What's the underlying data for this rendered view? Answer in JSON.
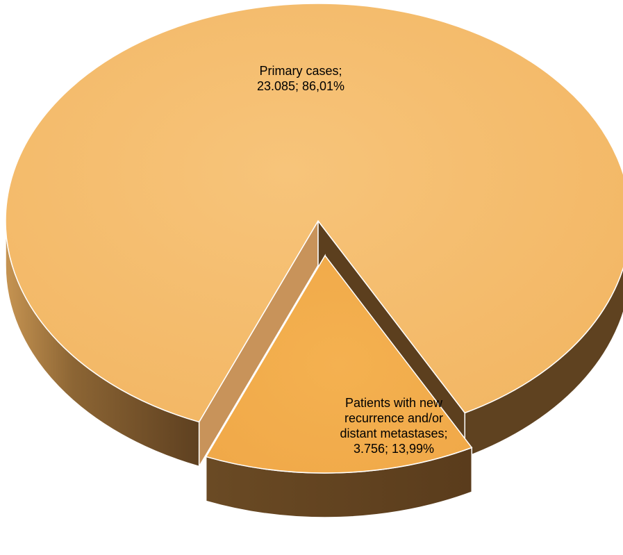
{
  "chart_data": {
    "type": "pie",
    "style": "3d-exploded",
    "title": "",
    "slices": [
      {
        "name": "Primary cases",
        "value": 23085,
        "percent": 86.01,
        "label_lines": [
          "Primary cases;",
          "23.085; 86,01%"
        ],
        "color": "#F5BC6A",
        "side_color": "#6B4A22"
      },
      {
        "name": "Patients with new recurrence and/or distant metastases",
        "value": 3756,
        "percent": 13.99,
        "label_lines": [
          "Patients with new",
          "recurrence and/or",
          "distant metastases;",
          "3.756; 13,99%"
        ],
        "color": "#F3AE50",
        "side_color": "#604020",
        "exploded": true
      }
    ]
  }
}
